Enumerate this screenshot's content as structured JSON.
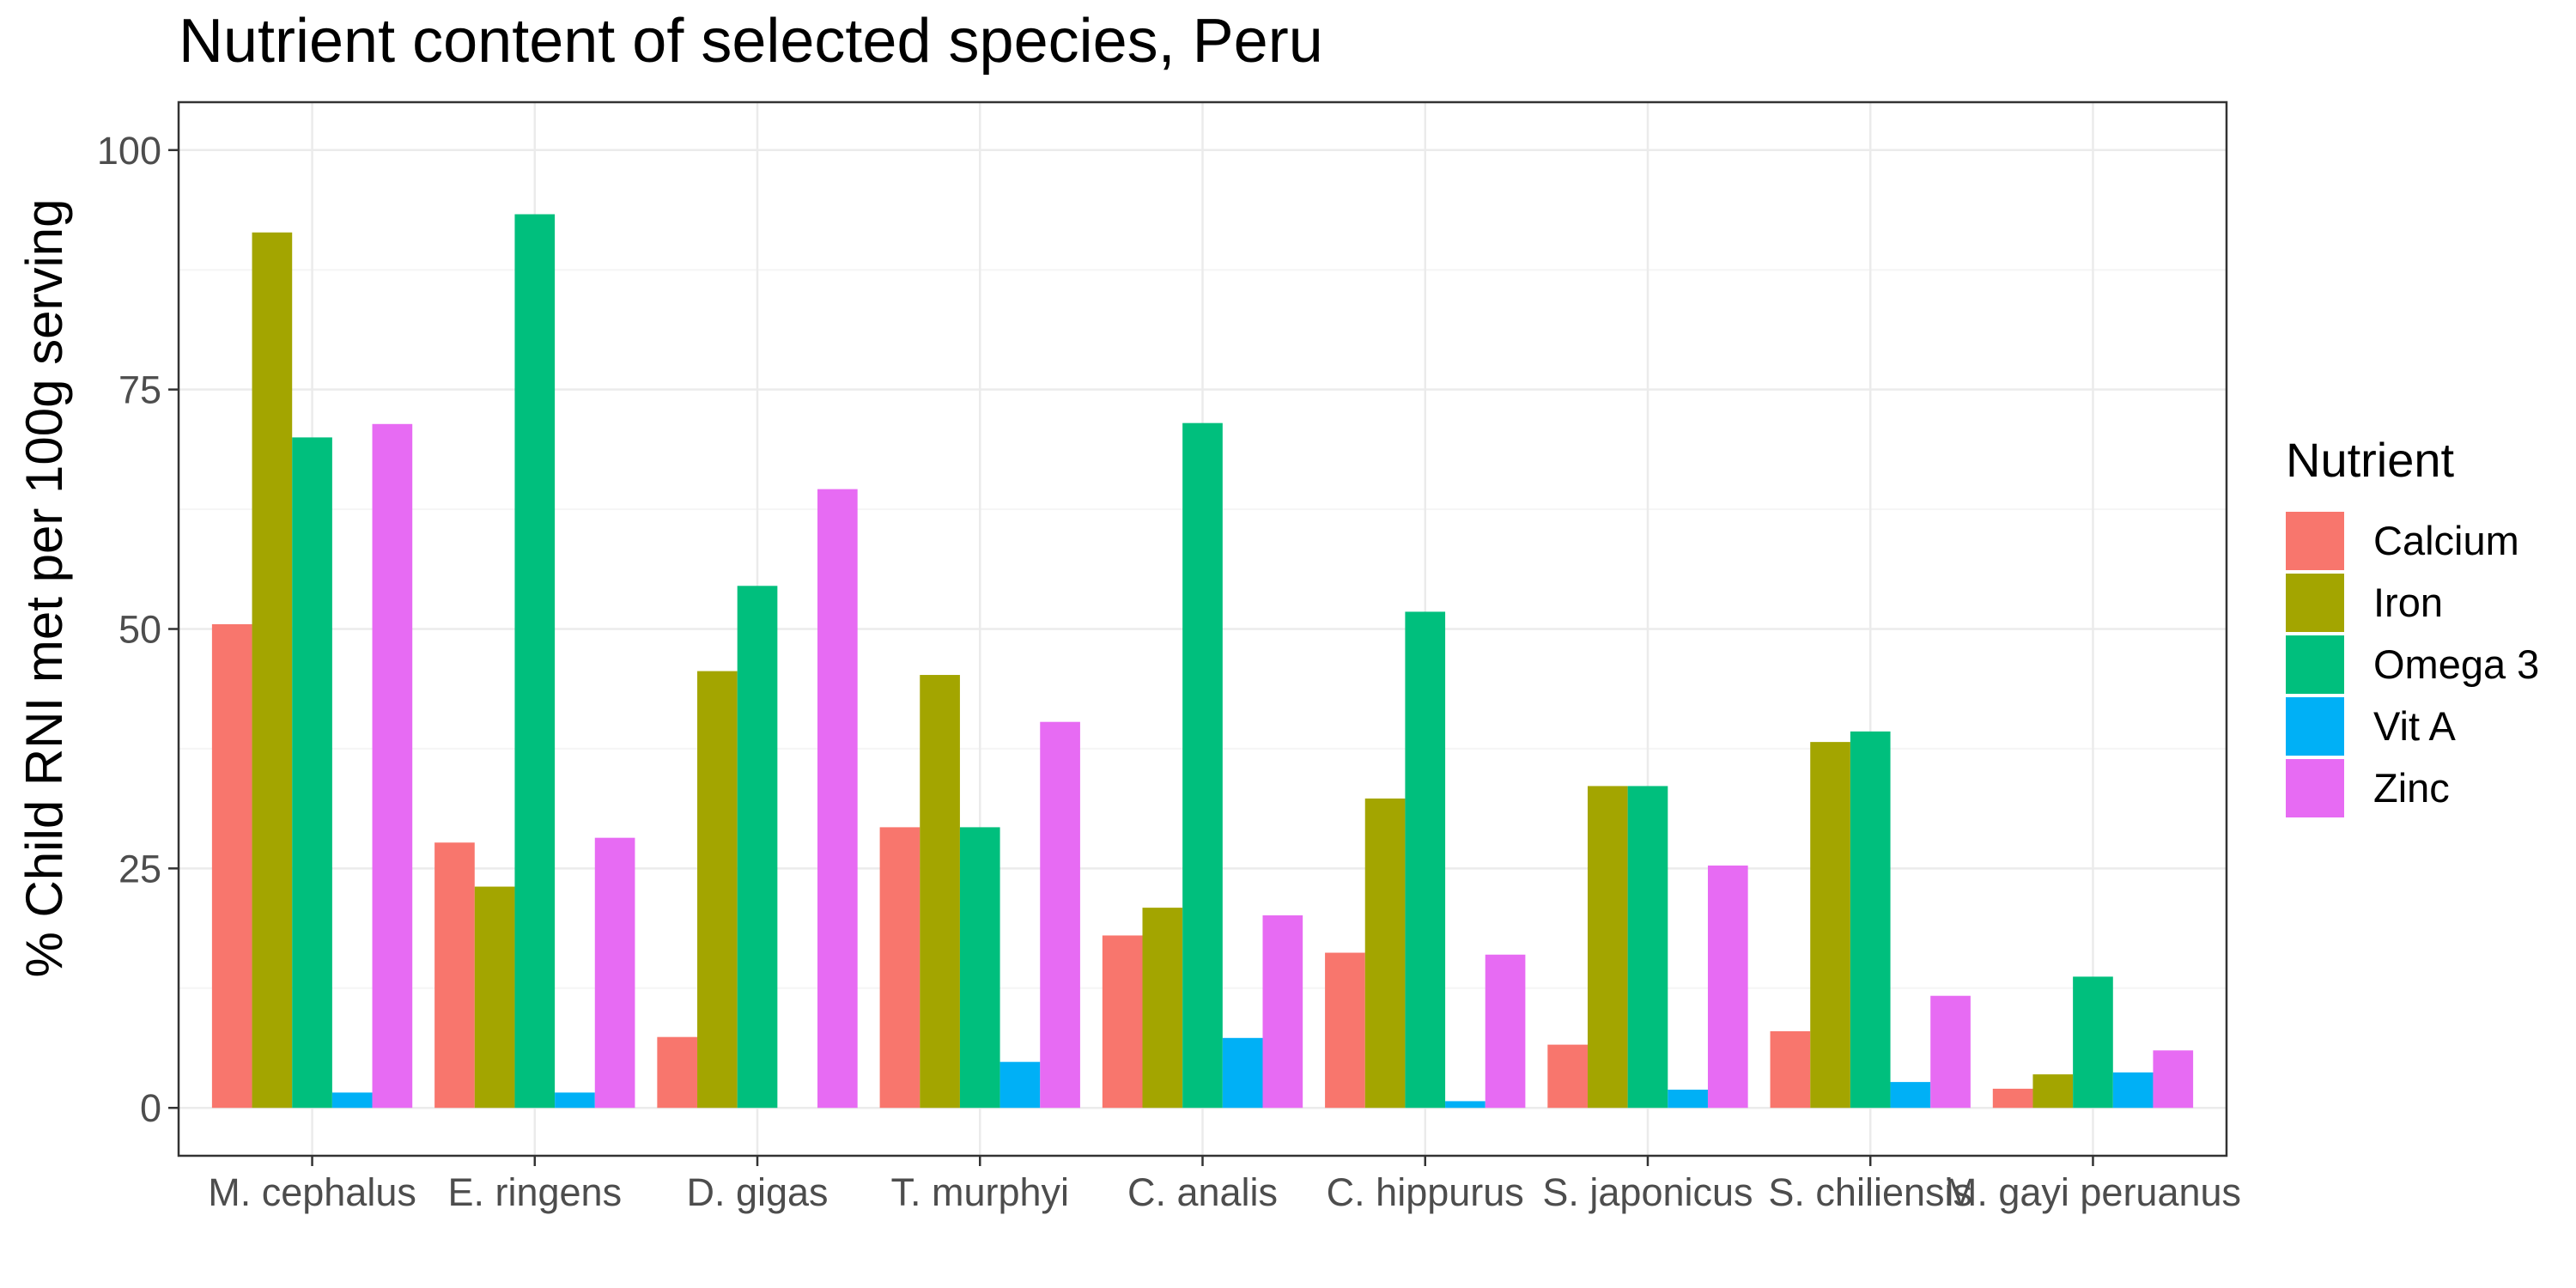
{
  "chart_data": {
    "type": "bar",
    "title": "Nutrient content of selected species, Peru",
    "xlabel": "",
    "ylabel": "% Child RNI met per 100g serving",
    "ylim": [
      -5,
      105
    ],
    "y_ticks": [
      0,
      25,
      50,
      75,
      100
    ],
    "y_tick_labels": [
      "0",
      "25",
      "50",
      "75",
      "100"
    ],
    "categories": [
      "M. cephalus",
      "E. ringens",
      "D. gigas",
      "T. murphyi",
      "C. analis",
      "C. hippurus",
      "S. japonicus",
      "S. chiliensis",
      "M. gayi peruanus"
    ],
    "legend": {
      "title": "Nutrient",
      "placement": "right"
    },
    "grid": true,
    "series": [
      {
        "name": "Calcium",
        "color": "#F8766D",
        "values": [
          50.5,
          27.7,
          7.4,
          29.3,
          18.0,
          16.2,
          6.6,
          8.0,
          2.0
        ]
      },
      {
        "name": "Iron",
        "color": "#A3A500",
        "values": [
          91.4,
          23.1,
          45.6,
          45.2,
          20.9,
          32.3,
          33.6,
          38.2,
          3.5
        ]
      },
      {
        "name": "Omega 3",
        "color": "#00BF7D",
        "values": [
          70.0,
          93.3,
          54.5,
          29.3,
          71.5,
          51.8,
          33.6,
          39.3,
          13.7
        ]
      },
      {
        "name": "Vit A",
        "color": "#00B0F6",
        "values": [
          1.6,
          1.6,
          0.0,
          4.8,
          7.3,
          0.7,
          1.9,
          2.7,
          3.7
        ]
      },
      {
        "name": "Zinc",
        "color": "#E76BF3",
        "values": [
          71.4,
          28.2,
          64.6,
          40.3,
          20.1,
          16.0,
          25.3,
          11.7,
          6.0
        ]
      }
    ]
  },
  "colors": {
    "panel_border": "#333333",
    "grid_major": "#ebebeb",
    "grid_minor": "#f5f5f5",
    "tick": "#333333"
  }
}
